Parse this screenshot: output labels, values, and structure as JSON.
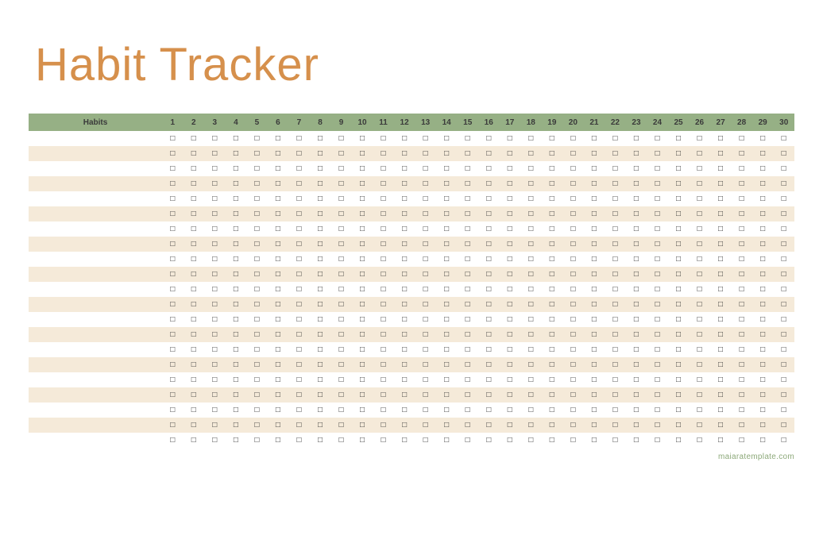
{
  "title": "Habit Tracker",
  "title_color": "#d6904c",
  "header_bg": "#96b085",
  "header_text_color": "#3a3a3a",
  "row_alt_bg": "#f5ead9",
  "row_bg": "#ffffff",
  "checkbox_color": "#2b2b2b",
  "checkbox_glyph": "□",
  "habits_header": "Habits",
  "day_count": 30,
  "row_count": 21,
  "footer_text": "maiaratemplate.com",
  "footer_color": "#8da97a"
}
